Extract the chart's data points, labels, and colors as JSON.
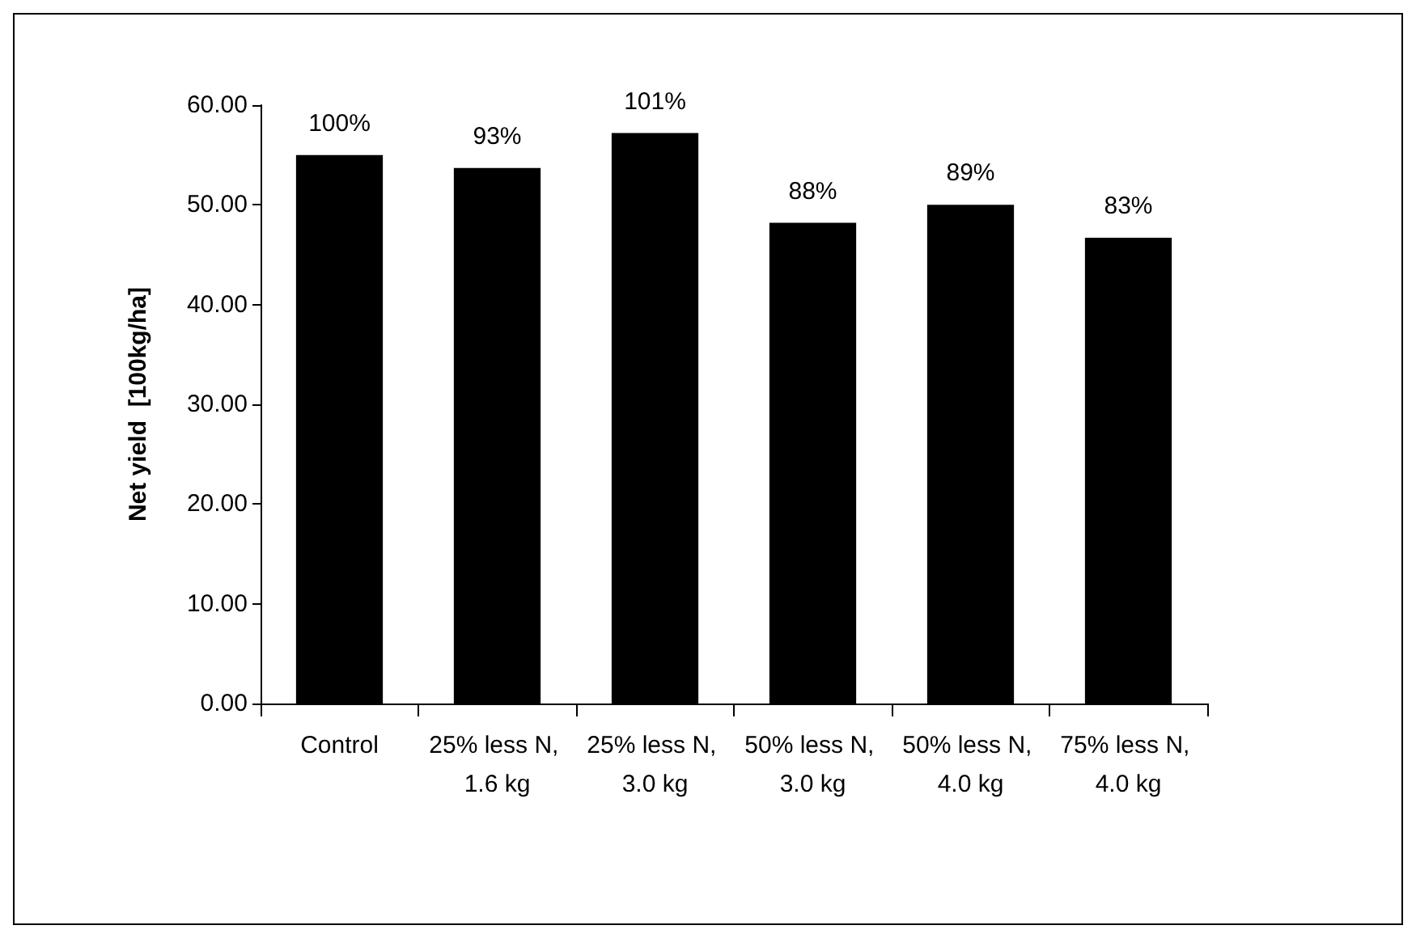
{
  "chart_data": {
    "type": "bar",
    "ylabel": "Net yield  [100kg/ha]",
    "categories": [
      "Control",
      "25% less N, 1.6 kg",
      "25% less N, 3.0 kg",
      "50% less N, 3.0 kg",
      "50% less N, 4.0 kg",
      "75% less N, 4.0 kg"
    ],
    "values": [
      55.0,
      53.7,
      57.2,
      48.2,
      50.0,
      46.7
    ],
    "annotations": [
      {
        "text": "100%",
        "x": "Control",
        "y": 55.0
      },
      {
        "text": "93%",
        "x": "25% less N, 1.6 kg",
        "y": 53.7
      },
      {
        "text": "101%",
        "x": "25% less N, 3.0 kg",
        "y": 57.2
      },
      {
        "text": "88%",
        "x": "50% less N, 3.0 kg",
        "y": 48.2
      },
      {
        "text": "89%",
        "x": "50% less N, 4.0 kg",
        "y": 50.0
      },
      {
        "text": "83%",
        "x": "75% less N, 4.0 kg",
        "y": 46.7
      }
    ],
    "color": "#000000",
    "ylim": [
      0,
      60
    ],
    "yticks": [
      {
        "value": 0,
        "label": "0.00"
      },
      {
        "value": 10,
        "label": "10.00"
      },
      {
        "value": 20,
        "label": "20.00"
      },
      {
        "value": 30,
        "label": "30.00"
      },
      {
        "value": 40,
        "label": "40.00"
      },
      {
        "value": 50,
        "label": "50.00"
      },
      {
        "value": 60,
        "label": "60.00"
      }
    ],
    "grid": false
  }
}
